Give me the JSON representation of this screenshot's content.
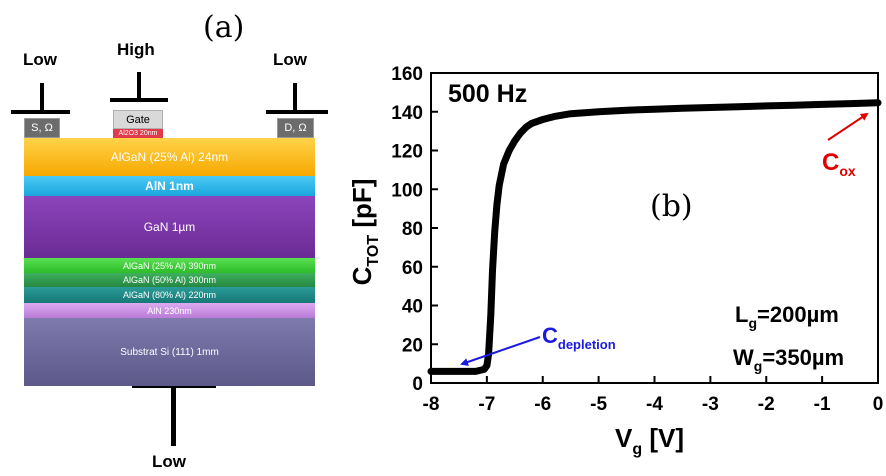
{
  "panel_a": {
    "label": "(a)",
    "probes": {
      "left": "Low",
      "gate": "High",
      "right": "Low",
      "bottom": "Low"
    },
    "contacts": {
      "source": "S, Ω",
      "gate": "Gate",
      "drain": "D, Ω",
      "oxide": "Al2O3 20nm"
    },
    "layers": [
      {
        "text": "AlGaN (25% Al) 24nm",
        "color": "#f7b418"
      },
      {
        "text": "AlN 1nm",
        "color": "#22b6ec"
      },
      {
        "text": "GaN 1µm",
        "color": "#7a35a6"
      },
      {
        "text": "AlGaN (25% Al) 390nm",
        "color": "#3fcf3a"
      },
      {
        "text": "AlGaN (50% Al) 300nm",
        "color": "#2f9a4e"
      },
      {
        "text": "AlGaN (80% Al) 220nm",
        "color": "#1f8a87"
      },
      {
        "text": "AlN 230nm",
        "color": "#c98ee3"
      },
      {
        "text": "Substrat Si (111) 1mm",
        "color": "#6e6a9e"
      }
    ]
  },
  "panel_b": {
    "label": "(b)",
    "frequency": "500 Hz",
    "lg_label": "L",
    "lg_sub": "g",
    "lg_value": "=200µm",
    "wg_label": "W",
    "wg_sub": "g",
    "wg_value": "=350µm",
    "cox_main": "C",
    "cox_sub": "ox",
    "cdep_main": "C",
    "cdep_sub": "depletion",
    "ylabel_main": "C",
    "ylabel_sub": "TOT",
    "ylabel_unit": " [pF]",
    "xlabel_main": "V",
    "xlabel_sub": "g",
    "xlabel_unit": " [V]",
    "colors": {
      "cox": "#e00000",
      "cdep": "#1a1ae0",
      "curve": "#000000"
    }
  },
  "chart_data": {
    "type": "line",
    "title": "",
    "xlabel": "Vg [V]",
    "ylabel": "CTOT [pF]",
    "xlim": [
      -8,
      0
    ],
    "ylim": [
      0,
      160
    ],
    "x_ticks": [
      -8,
      -7,
      -6,
      -5,
      -4,
      -3,
      -2,
      -1,
      0
    ],
    "y_ticks": [
      0,
      20,
      40,
      60,
      80,
      100,
      120,
      140,
      160
    ],
    "series": [
      {
        "x": [
          -8.0,
          -7.5,
          -7.2,
          -7.05,
          -7.0,
          -6.97,
          -6.93,
          -6.9,
          -6.86,
          -6.82,
          -6.78,
          -6.7,
          -6.6,
          -6.5,
          -6.4,
          -6.3,
          -6.2,
          -6.1,
          -6.0,
          -5.8,
          -5.5,
          -5.0,
          -4.5,
          -4.0,
          -3.5,
          -3.0,
          -2.5,
          -2.0,
          -1.5,
          -1.0,
          -0.5,
          0.0
        ],
        "values": [
          6,
          6,
          6,
          7,
          9,
          15,
          35,
          58,
          78,
          92,
          102,
          113,
          120,
          125,
          129,
          132,
          134,
          135,
          136,
          137.5,
          139,
          140,
          140.8,
          141.3,
          141.8,
          142.2,
          142.6,
          143,
          143.4,
          143.8,
          144.2,
          144.6
        ]
      }
    ]
  }
}
